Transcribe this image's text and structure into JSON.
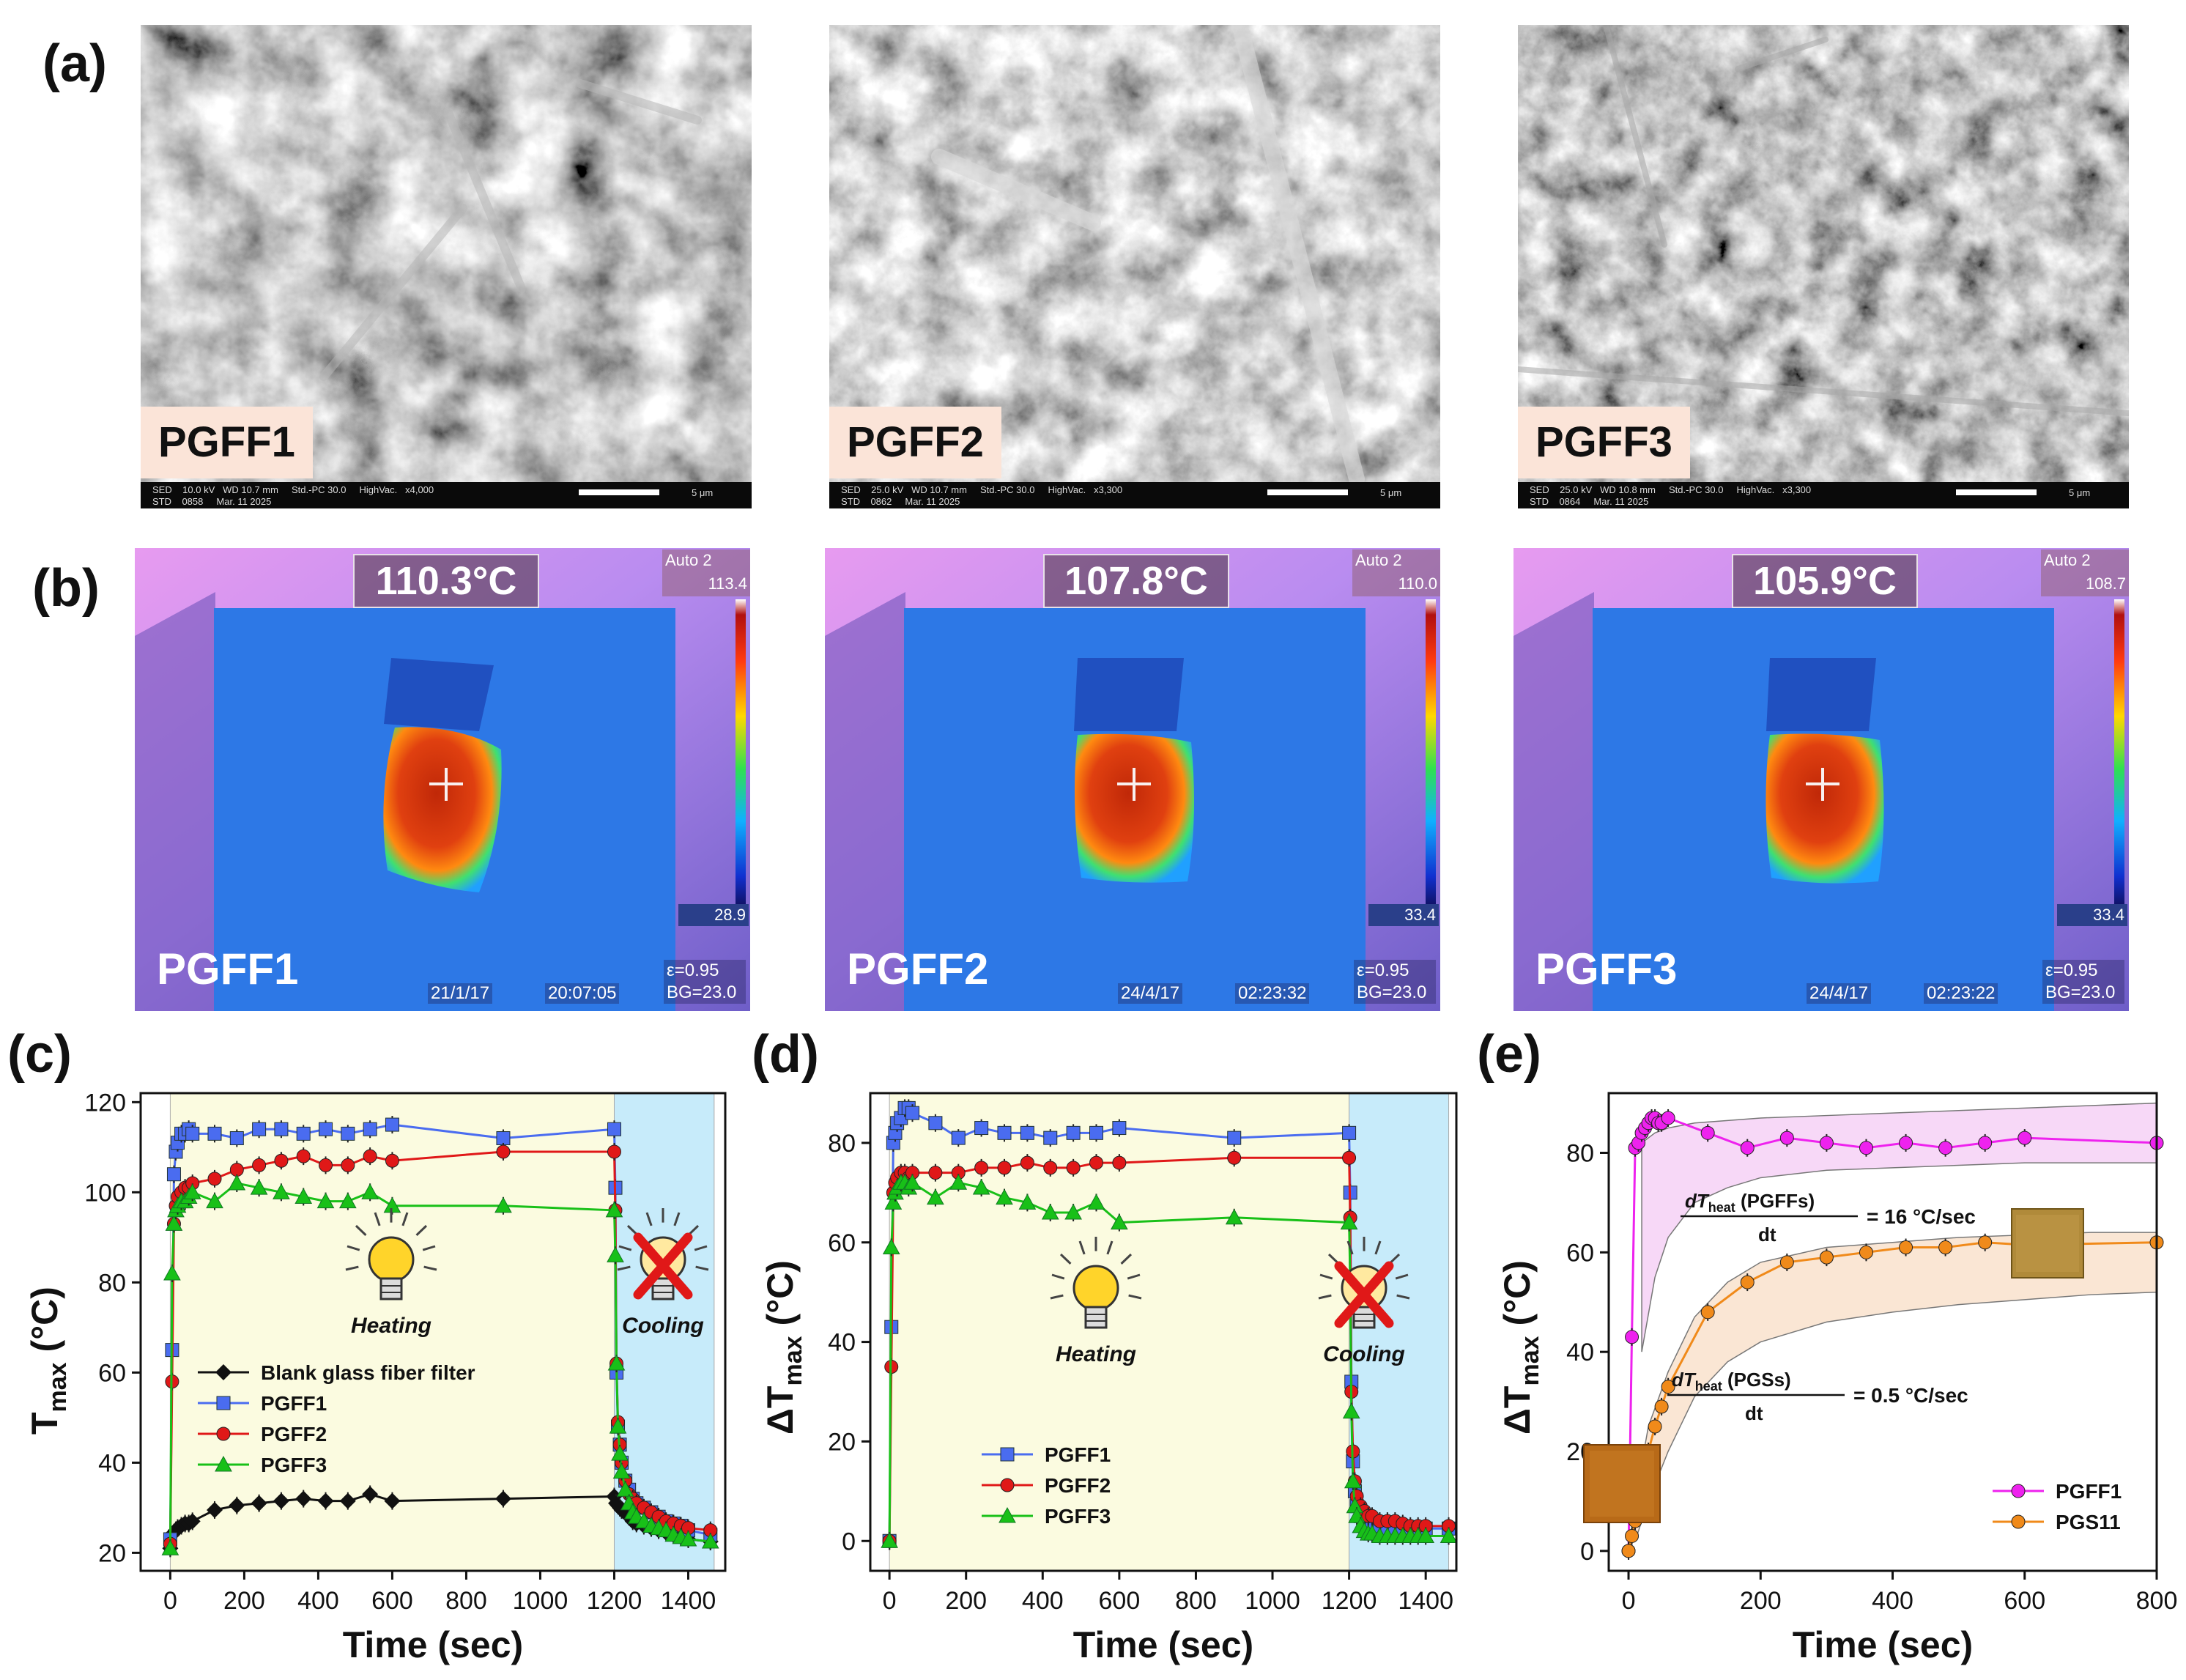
{
  "panels": {
    "a": {
      "letter": "(a)"
    },
    "b": {
      "letter": "(b)"
    },
    "c": {
      "letter": "(c)"
    },
    "d": {
      "letter": "(d)"
    },
    "e": {
      "letter": "(e)"
    }
  },
  "sem_images": [
    {
      "label": "PGFF1",
      "line1": "SED    10.0 kV   WD 10.7 mm     Std.-PC 30.0     HighVac.   x4,000",
      "line2": "STD    0858     Mar. 11 2025",
      "scale": "5 μm"
    },
    {
      "label": "PGFF2",
      "line1": "SED    25.0 kV   WD 10.7 mm     Std.-PC 30.0     HighVac.   x3,300",
      "line2": "STD    0862     Mar. 11 2025",
      "scale": "5 μm"
    },
    {
      "label": "PGFF3",
      "line1": "SED    25.0 kV   WD 10.8 mm     Std.-PC 30.0     HighVac.   x3,300",
      "line2": "STD    0864     Mar. 11 2025",
      "scale": "5 μm"
    }
  ],
  "thermal_images": [
    {
      "name": "PGFF1",
      "temp": "110.3°C",
      "auto": "Auto 2",
      "max": "113.4",
      "min": "28.9",
      "date": "21/1/17",
      "time": "20:07:05",
      "eps": "ε=0.95",
      "bg": "BG=23.0"
    },
    {
      "name": "PGFF2",
      "temp": "107.8°C",
      "auto": "Auto 2",
      "max": "110.0",
      "min": "33.4",
      "date": "24/4/17",
      "time": "02:23:32",
      "eps": "ε=0.95",
      "bg": "BG=23.0"
    },
    {
      "name": "PGFF3",
      "temp": "105.9°C",
      "auto": "Auto 2",
      "max": "108.7",
      "min": "33.4",
      "date": "24/4/17",
      "time": "02:23:22",
      "eps": "ε=0.95",
      "bg": "BG=23.0"
    }
  ],
  "chart_data": [
    {
      "panel": "c",
      "type": "line",
      "xlabel": "Time (sec)",
      "ylabel_main": "T",
      "ylabel_sub": "max",
      "ylabel_unit": " (°C)",
      "xlim": [
        -80,
        1500
      ],
      "ylim": [
        16,
        122
      ],
      "xticks": [
        0,
        200,
        400,
        600,
        800,
        1000,
        1200,
        1400
      ],
      "yticks": [
        20,
        40,
        60,
        80,
        100,
        120
      ],
      "regions": [
        {
          "name": "heating",
          "x0": 0,
          "x1": 1200,
          "color": "#fbfbe0",
          "label": "Heating"
        },
        {
          "name": "cooling",
          "x0": 1200,
          "x1": 1470,
          "color": "#c7ebfa",
          "label": "Cooling"
        }
      ],
      "legend_position": "lower-left",
      "series": [
        {
          "name": "Blank glass fiber filter",
          "color": "#111111",
          "marker": "diamond",
          "x": [
            0,
            5,
            10,
            15,
            20,
            30,
            40,
            50,
            60,
            120,
            180,
            240,
            300,
            360,
            420,
            480,
            540,
            600,
            900,
            1200,
            1205,
            1210,
            1215,
            1220,
            1230,
            1240,
            1250,
            1260,
            1280,
            1300,
            1320,
            1340,
            1360,
            1380,
            1400,
            1460
          ],
          "y": [
            21,
            24,
            24.5,
            25,
            25.5,
            26,
            26.5,
            26.5,
            27,
            29.5,
            30.5,
            31,
            31.5,
            32,
            31.5,
            31.5,
            33,
            31.5,
            32,
            32.5,
            31,
            30.5,
            30,
            29.5,
            29,
            28,
            27,
            26.5,
            26,
            25.5,
            25,
            24.5,
            24,
            23.5,
            23,
            22.5
          ]
        },
        {
          "name": "PGFF1",
          "color": "#4a6cf0",
          "marker": "square",
          "x": [
            0,
            5,
            10,
            15,
            20,
            30,
            40,
            50,
            60,
            120,
            180,
            240,
            300,
            360,
            420,
            480,
            540,
            600,
            900,
            1200,
            1203,
            1206,
            1210,
            1215,
            1220,
            1230,
            1240,
            1250,
            1260,
            1280,
            1300,
            1320,
            1340,
            1360,
            1380,
            1400,
            1460
          ],
          "y": [
            23,
            65,
            104,
            109,
            111,
            113,
            113,
            114,
            113,
            113,
            112,
            114,
            114,
            113,
            114,
            113,
            114,
            115,
            112,
            114,
            101,
            60,
            48,
            44,
            40,
            36,
            34,
            32,
            31,
            30,
            29,
            28,
            27,
            26.5,
            26,
            25,
            24
          ]
        },
        {
          "name": "PGFF2",
          "color": "#e01818",
          "marker": "circle",
          "x": [
            0,
            5,
            10,
            15,
            20,
            30,
            40,
            50,
            60,
            120,
            180,
            240,
            300,
            360,
            420,
            480,
            540,
            600,
            900,
            1200,
            1203,
            1206,
            1210,
            1215,
            1220,
            1230,
            1240,
            1250,
            1260,
            1280,
            1300,
            1320,
            1340,
            1360,
            1380,
            1400,
            1460
          ],
          "y": [
            22,
            58,
            93,
            97,
            99,
            100,
            101,
            101,
            102,
            103,
            105,
            106,
            107,
            108,
            106,
            106,
            108,
            107,
            109,
            109,
            96,
            62,
            49,
            44,
            40,
            36,
            33,
            32,
            31,
            30,
            29,
            28,
            27,
            26.5,
            26,
            25.5,
            25
          ]
        },
        {
          "name": "PGFF3",
          "color": "#18c018",
          "marker": "triangle",
          "x": [
            0,
            5,
            10,
            15,
            20,
            30,
            40,
            50,
            60,
            120,
            180,
            240,
            300,
            360,
            420,
            480,
            540,
            600,
            900,
            1200,
            1203,
            1206,
            1210,
            1215,
            1220,
            1230,
            1240,
            1250,
            1260,
            1280,
            1300,
            1320,
            1340,
            1360,
            1380,
            1400,
            1460
          ],
          "y": [
            21,
            82,
            93,
            96,
            97,
            98,
            98,
            99,
            100,
            98,
            102,
            101,
            100,
            99,
            98,
            98,
            100,
            97,
            97,
            96,
            86,
            62,
            48,
            42,
            38,
            34,
            31,
            29,
            28,
            27,
            26,
            25.5,
            25,
            24,
            23.5,
            23,
            22.5
          ]
        }
      ]
    },
    {
      "panel": "d",
      "type": "line",
      "xlabel": "Time (sec)",
      "ylabel_main": "ΔT",
      "ylabel_sub": "max",
      "ylabel_unit": " (°C)",
      "xlim": [
        -50,
        1480
      ],
      "ylim": [
        -6,
        90
      ],
      "xticks": [
        0,
        200,
        400,
        600,
        800,
        1000,
        1200,
        1400
      ],
      "yticks": [
        0,
        20,
        40,
        60,
        80
      ],
      "regions": [
        {
          "name": "heating",
          "x0": 0,
          "x1": 1200,
          "color": "#fbfbe0",
          "label": "Heating"
        },
        {
          "name": "cooling",
          "x0": 1200,
          "x1": 1460,
          "color": "#c7ebfa",
          "label": "Cooling"
        }
      ],
      "legend_position": "lower-left",
      "series": [
        {
          "name": "PGFF1",
          "color": "#4a6cf0",
          "marker": "square",
          "x": [
            0,
            5,
            10,
            15,
            20,
            30,
            40,
            50,
            60,
            120,
            180,
            240,
            300,
            360,
            420,
            480,
            540,
            600,
            900,
            1200,
            1203,
            1206,
            1210,
            1215,
            1220,
            1230,
            1240,
            1250,
            1260,
            1280,
            1300,
            1320,
            1340,
            1360,
            1380,
            1400,
            1460
          ],
          "y": [
            0,
            43,
            80,
            82,
            84,
            85,
            87,
            87,
            86,
            84,
            81,
            83,
            82,
            82,
            81,
            82,
            82,
            83,
            81,
            82,
            70,
            32,
            16,
            10,
            7,
            5,
            4,
            3,
            3,
            3,
            2.5,
            2.5,
            2.5,
            2.5,
            2.5,
            2.5,
            2.5
          ]
        },
        {
          "name": "PGFF2",
          "color": "#e01818",
          "marker": "circle",
          "x": [
            0,
            5,
            10,
            15,
            20,
            30,
            40,
            50,
            60,
            120,
            180,
            240,
            300,
            360,
            420,
            480,
            540,
            600,
            900,
            1200,
            1203,
            1206,
            1210,
            1215,
            1220,
            1230,
            1240,
            1250,
            1260,
            1280,
            1300,
            1320,
            1340,
            1360,
            1380,
            1400,
            1460
          ],
          "y": [
            0,
            35,
            70,
            72,
            73,
            74,
            74,
            73,
            74,
            74,
            74,
            75,
            75,
            76,
            75,
            75,
            76,
            76,
            77,
            77,
            65,
            30,
            18,
            12,
            9,
            7,
            6,
            5,
            5,
            4,
            4,
            4,
            3.5,
            3,
            3,
            3,
            3
          ]
        },
        {
          "name": "PGFF3",
          "color": "#18c018",
          "marker": "triangle",
          "x": [
            0,
            5,
            10,
            15,
            20,
            30,
            40,
            50,
            60,
            120,
            180,
            240,
            300,
            360,
            420,
            480,
            540,
            600,
            900,
            1200,
            1203,
            1206,
            1210,
            1215,
            1220,
            1230,
            1240,
            1250,
            1260,
            1280,
            1300,
            1320,
            1340,
            1360,
            1380,
            1400,
            1460
          ],
          "y": [
            0,
            59,
            68,
            70,
            71,
            72,
            72,
            71,
            72,
            69,
            72,
            71,
            69,
            68,
            66,
            66,
            68,
            64,
            65,
            64,
            52,
            26,
            12,
            7,
            5,
            3,
            2,
            1.5,
            1.5,
            1,
            1,
            1,
            1,
            1,
            1,
            1,
            1
          ]
        }
      ]
    },
    {
      "panel": "e",
      "type": "line",
      "xlabel": "Time (sec)",
      "ylabel_main": "ΔT",
      "ylabel_sub": "max",
      "ylabel_unit": " (°C)",
      "xlim": [
        -30,
        800
      ],
      "ylim": [
        -4,
        92
      ],
      "xticks": [
        0,
        200,
        400,
        600,
        800
      ],
      "yticks": [
        0,
        20,
        40,
        60,
        80
      ],
      "legend_position": "lower-right",
      "bands": [
        {
          "name": "pgff-band",
          "color": "#f0b8f0",
          "x": [
            20,
            40,
            60,
            100,
            150,
            200,
            300,
            400,
            500,
            600,
            700,
            800
          ],
          "upper": [
            82,
            84,
            85,
            86,
            86.5,
            87,
            87.5,
            88,
            88.5,
            89,
            89.5,
            90
          ],
          "lower": [
            40,
            55,
            63,
            70,
            73,
            75,
            76.5,
            77,
            77.5,
            78,
            78,
            78
          ]
        },
        {
          "name": "pgs-band",
          "color": "#f6d1b0",
          "x": [
            10,
            30,
            60,
            100,
            150,
            200,
            300,
            400,
            500,
            600,
            700,
            800
          ],
          "upper": [
            10,
            25,
            36,
            47,
            54,
            58,
            61,
            62,
            63,
            63.5,
            64,
            64
          ],
          "lower": [
            2,
            10,
            20,
            31,
            38,
            42,
            46,
            48,
            49.5,
            50.5,
            51.5,
            52
          ]
        }
      ],
      "annotations": [
        {
          "name": "pgff-rate",
          "numerator": "dT",
          "num_sub": "heat",
          "num_extra": " (PGFFs)",
          "denominator": "dt",
          "value": "= 16 °C/sec"
        },
        {
          "name": "pgs-rate",
          "numerator": "dT",
          "num_sub": "heat",
          "num_extra": " (PGSs)",
          "denominator": "dt",
          "value": "= 0.5 °C/sec"
        }
      ],
      "series": [
        {
          "name": "PGFF1",
          "color": "#ee22ee",
          "marker": "circle",
          "x": [
            0,
            5,
            10,
            15,
            20,
            25,
            30,
            35,
            40,
            45,
            50,
            60,
            120,
            180,
            240,
            300,
            360,
            420,
            480,
            540,
            600,
            800
          ],
          "y": [
            0,
            43,
            81,
            82,
            84,
            85,
            86,
            87,
            87,
            86,
            86,
            87,
            84,
            81,
            83,
            82,
            81,
            82,
            81,
            82,
            83,
            82
          ]
        },
        {
          "name": "PGS11",
          "color": "#f08a1a",
          "marker": "circle",
          "x": [
            0,
            5,
            10,
            15,
            20,
            25,
            30,
            40,
            50,
            60,
            120,
            180,
            240,
            300,
            360,
            420,
            480,
            540,
            600,
            800
          ],
          "y": [
            0,
            3,
            6,
            9,
            12,
            16,
            20,
            25,
            29,
            33,
            48,
            54,
            58,
            59,
            60,
            61,
            61,
            62,
            61.5,
            62
          ]
        }
      ]
    }
  ]
}
